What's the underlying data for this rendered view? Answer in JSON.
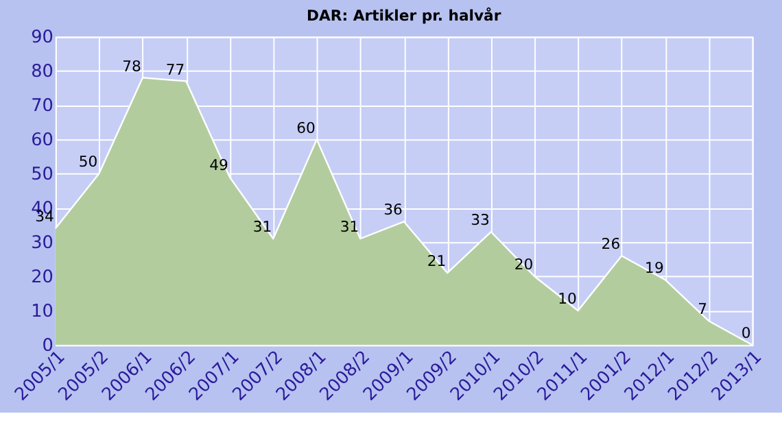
{
  "chart_data": {
    "type": "area",
    "title": "DAR: Artikler pr. halvår",
    "categories": [
      "2005/1",
      "2005/2",
      "2006/1",
      "2006/2",
      "2007/1",
      "2007/2",
      "2008/1",
      "2008/2",
      "2009/1",
      "2009/2",
      "2010/1",
      "2010/2",
      "2011/1",
      "2001/2",
      "2012/1",
      "2012/2",
      "2013/1"
    ],
    "series": [
      {
        "color": "#b3cc9e",
        "values": [
          34,
          50,
          78,
          77,
          49,
          31,
          60,
          31,
          36,
          21,
          33,
          20,
          10,
          26,
          19,
          7,
          0
        ]
      }
    ],
    "ylim": [
      0,
      90
    ],
    "yticks": [
      0,
      10,
      20,
      30,
      40,
      50,
      60,
      70,
      80,
      90
    ],
    "grid": true,
    "data_labels": true
  }
}
